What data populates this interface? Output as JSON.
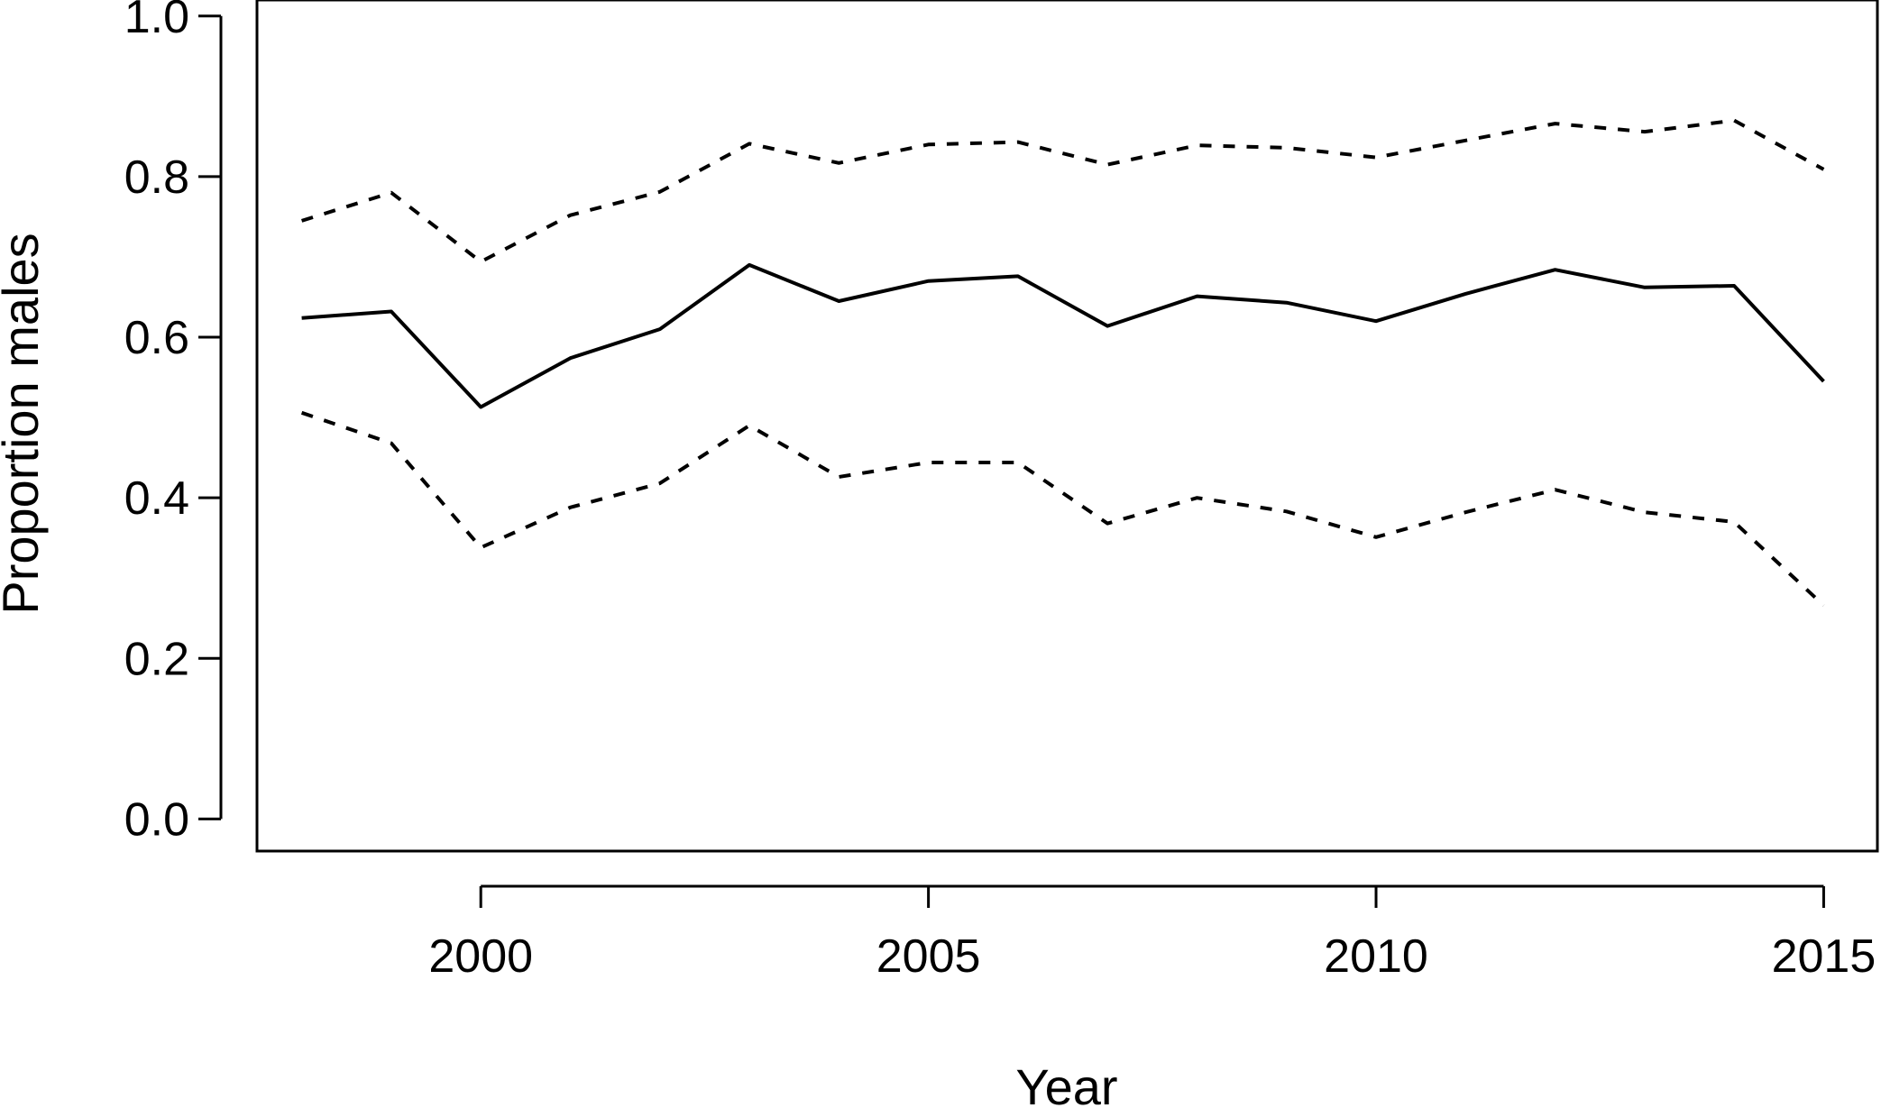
{
  "chart_data": {
    "type": "line",
    "title": "",
    "xlabel": "Year",
    "ylabel": "Proportion males",
    "xlim": [
      1997.5,
      2015.6
    ],
    "ylim": [
      -0.04,
      1.02
    ],
    "x_ticks": [
      2000,
      2005,
      2010,
      2015
    ],
    "y_ticks": [
      0.0,
      0.2,
      0.4,
      0.6,
      0.8,
      1.0
    ],
    "y_tick_labels": [
      "0.0",
      "0.2",
      "0.4",
      "0.6",
      "0.8",
      "1.0"
    ],
    "grid": false,
    "legend": "none",
    "x": [
      1998,
      1999,
      2000,
      2001,
      2002,
      2003,
      2004,
      2005,
      2006,
      2007,
      2008,
      2009,
      2010,
      2011,
      2012,
      2013,
      2014,
      2015
    ],
    "series": [
      {
        "style": "solid",
        "values": [
          0.624,
          0.632,
          0.513,
          0.574,
          0.61,
          0.69,
          0.645,
          0.67,
          0.676,
          0.614,
          0.651,
          0.643,
          0.62,
          0.654,
          0.684,
          0.662,
          0.664,
          0.545
        ]
      },
      {
        "style": "dashed",
        "values": [
          0.745,
          0.78,
          0.694,
          0.752,
          0.781,
          0.841,
          0.817,
          0.84,
          0.843,
          0.815,
          0.839,
          0.836,
          0.824,
          0.845,
          0.866,
          0.856,
          0.87,
          0.809
        ]
      },
      {
        "style": "dashed",
        "values": [
          0.506,
          0.468,
          0.338,
          0.388,
          0.418,
          0.49,
          0.426,
          0.444,
          0.444,
          0.368,
          0.4,
          0.383,
          0.351,
          0.382,
          0.41,
          0.382,
          0.37,
          0.266
        ]
      }
    ]
  }
}
